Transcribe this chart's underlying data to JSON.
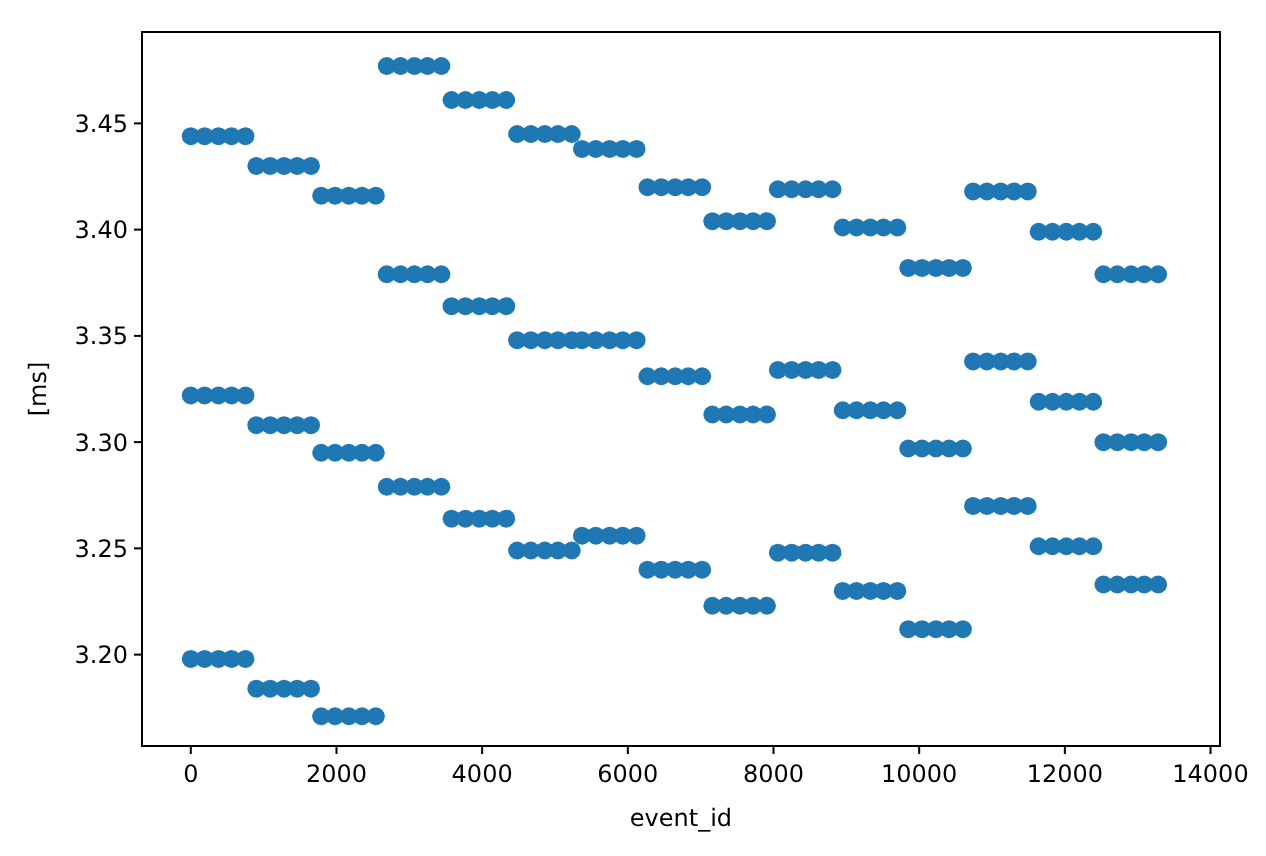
{
  "chart_data": {
    "type": "scatter",
    "xlabel": "event_id",
    "ylabel": "[ms]",
    "marker": "circle",
    "grid": false,
    "xlim": [
      -670,
      14130
    ],
    "ylim": [
      3.157,
      3.493
    ],
    "xticks": [
      0,
      2000,
      4000,
      6000,
      8000,
      10000,
      12000,
      14000
    ],
    "yticks": [
      {
        "value": 3.2,
        "label": "3.20"
      },
      {
        "value": 3.25,
        "label": "3.25"
      },
      {
        "value": 3.3,
        "label": "3.30"
      },
      {
        "value": 3.35,
        "label": "3.35"
      },
      {
        "value": 3.4,
        "label": "3.40"
      },
      {
        "value": 3.45,
        "label": "3.45"
      }
    ],
    "x": [
      0,
      190,
      380,
      560,
      750,
      900,
      1090,
      1280,
      1460,
      1650,
      1790,
      1980,
      2170,
      2350,
      2540,
      2690,
      2880,
      3070,
      3250,
      3440,
      3580,
      3770,
      3960,
      4140,
      4330,
      4480,
      4670,
      4860,
      5040,
      5230,
      5370,
      5560,
      5750,
      5930,
      6120,
      6270,
      6460,
      6650,
      6830,
      7020,
      7160,
      7350,
      7540,
      7720,
      7910,
      8060,
      8250,
      8440,
      8620,
      8810,
      8950,
      9140,
      9330,
      9510,
      9700,
      9850,
      10040,
      10230,
      10410,
      10600,
      10740,
      10930,
      11120,
      11300,
      11490,
      11640,
      11830,
      12020,
      12200,
      12390,
      12530,
      12720,
      12910,
      13090,
      13280
    ],
    "series": [
      {
        "color": "#1f77b4",
        "values": [
          3.444,
          3.444,
          3.444,
          3.444,
          3.444,
          3.43,
          3.43,
          3.43,
          3.43,
          3.43,
          3.416,
          3.416,
          3.416,
          3.416,
          3.416,
          3.477,
          3.477,
          3.477,
          3.477,
          3.477,
          3.461,
          3.461,
          3.461,
          3.461,
          3.461,
          3.445,
          3.445,
          3.445,
          3.445,
          3.445,
          3.438,
          3.438,
          3.438,
          3.438,
          3.438,
          3.42,
          3.42,
          3.42,
          3.42,
          3.42,
          3.404,
          3.404,
          3.404,
          3.404,
          3.404,
          3.419,
          3.419,
          3.419,
          3.419,
          3.419,
          3.401,
          3.401,
          3.401,
          3.401,
          3.401,
          3.382,
          3.382,
          3.382,
          3.382,
          3.382,
          3.418,
          3.418,
          3.418,
          3.418,
          3.418,
          3.399,
          3.399,
          3.399,
          3.399,
          3.399,
          3.379,
          3.379,
          3.379,
          3.379,
          3.379
        ]
      },
      {
        "color": "#1f77b4",
        "values": [
          3.322,
          3.322,
          3.322,
          3.322,
          3.322,
          3.308,
          3.308,
          3.308,
          3.308,
          3.308,
          3.295,
          3.295,
          3.295,
          3.295,
          3.295,
          3.379,
          3.379,
          3.379,
          3.379,
          3.379,
          3.364,
          3.364,
          3.364,
          3.364,
          3.364,
          3.348,
          3.348,
          3.348,
          3.348,
          3.348,
          3.348,
          3.348,
          3.348,
          3.348,
          3.348,
          3.331,
          3.331,
          3.331,
          3.331,
          3.331,
          3.313,
          3.313,
          3.313,
          3.313,
          3.313,
          3.334,
          3.334,
          3.334,
          3.334,
          3.334,
          3.315,
          3.315,
          3.315,
          3.315,
          3.315,
          3.297,
          3.297,
          3.297,
          3.297,
          3.297,
          3.338,
          3.338,
          3.338,
          3.338,
          3.338,
          3.319,
          3.319,
          3.319,
          3.319,
          3.319,
          3.3,
          3.3,
          3.3,
          3.3,
          3.3
        ]
      },
      {
        "color": "#1f77b4",
        "values": [
          3.198,
          3.198,
          3.198,
          3.198,
          3.198,
          3.184,
          3.184,
          3.184,
          3.184,
          3.184,
          3.171,
          3.171,
          3.171,
          3.171,
          3.171,
          3.279,
          3.279,
          3.279,
          3.279,
          3.279,
          3.264,
          3.264,
          3.264,
          3.264,
          3.264,
          3.249,
          3.249,
          3.249,
          3.249,
          3.249,
          3.256,
          3.256,
          3.256,
          3.256,
          3.256,
          3.24,
          3.24,
          3.24,
          3.24,
          3.24,
          3.223,
          3.223,
          3.223,
          3.223,
          3.223,
          3.248,
          3.248,
          3.248,
          3.248,
          3.248,
          3.23,
          3.23,
          3.23,
          3.23,
          3.23,
          3.212,
          3.212,
          3.212,
          3.212,
          3.212,
          3.27,
          3.27,
          3.27,
          3.27,
          3.27,
          3.251,
          3.251,
          3.251,
          3.251,
          3.251,
          3.233,
          3.233,
          3.233,
          3.233,
          3.233
        ]
      }
    ]
  }
}
